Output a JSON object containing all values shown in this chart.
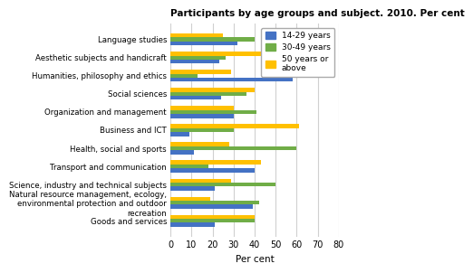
{
  "title": "Participants by age groups and subject. 2010. Per cent",
  "categories": [
    "Language studies",
    "Aesthetic subjects and handicraft",
    "Humanities, philosophy and ethics",
    "Social sciences",
    "Organization and management",
    "Business and ICT",
    "Health, social and sports",
    "Transport and communication",
    "Science, industry and technical subjects",
    "Natural resource management, ecology,\nenvironmental protection and outdoor\nrecreation",
    "Goods and services"
  ],
  "series_names": [
    "14-29 years",
    "30-49 years",
    "50 years or\nabove"
  ],
  "series_data": {
    "14-29 years": [
      32,
      23,
      58,
      24,
      30,
      9,
      11,
      40,
      21,
      39,
      21
    ],
    "30-49 years": [
      40,
      26,
      13,
      36,
      41,
      30,
      60,
      18,
      50,
      42,
      40
    ],
    "50 years or\nabove": [
      25,
      48,
      29,
      40,
      30,
      61,
      28,
      43,
      29,
      19,
      40
    ]
  },
  "colors": {
    "14-29 years": "#4472C4",
    "30-49 years": "#70AD47",
    "50 years or\nabove": "#FFC000"
  },
  "xlabel": "Per cent",
  "xlim": [
    0,
    80
  ],
  "xticks": [
    0,
    10,
    20,
    30,
    40,
    50,
    60,
    70,
    80
  ],
  "background_color": "#ffffff",
  "grid_color": "#d0d0d0",
  "bar_height": 0.22
}
